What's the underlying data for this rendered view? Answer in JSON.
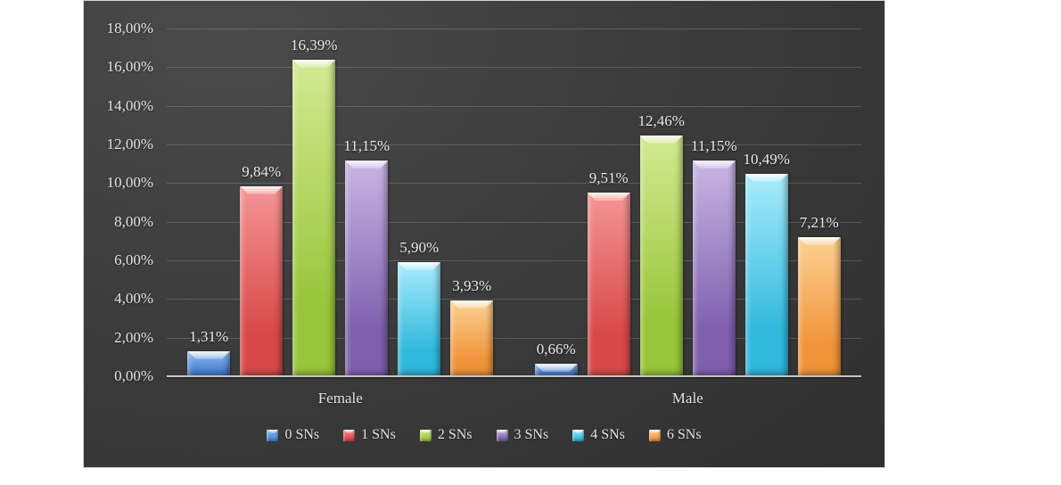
{
  "chart_data": {
    "type": "bar",
    "title": "",
    "xlabel": "",
    "ylabel": "",
    "categories": [
      "Female",
      "Male"
    ],
    "series": [
      {
        "name": "0 SNs",
        "values": [
          1.31,
          0.66
        ],
        "labels": [
          "1,31%",
          "0,66%"
        ],
        "color": {
          "top": "#8fbaee",
          "base": "#4b84d4"
        }
      },
      {
        "name": "1 SNs",
        "values": [
          9.84,
          9.51
        ],
        "labels": [
          "9,84%",
          "9,51%"
        ],
        "color": {
          "top": "#f59595",
          "base": "#d84848"
        }
      },
      {
        "name": "2 SNs",
        "values": [
          16.39,
          12.46
        ],
        "labels": [
          "16,39%",
          "12,46%"
        ],
        "color": {
          "top": "#d3ea92",
          "base": "#98c53a"
        }
      },
      {
        "name": "3 SNs",
        "values": [
          11.15,
          11.15
        ],
        "labels": [
          "11,15%",
          "11,15%"
        ],
        "color": {
          "top": "#c8b6e4",
          "base": "#7f60ae"
        }
      },
      {
        "name": "4 SNs",
        "values": [
          5.9,
          10.49
        ],
        "labels": [
          "5,90%",
          "10,49%"
        ],
        "color": {
          "top": "#a9ecfc",
          "base": "#30b8dd"
        }
      },
      {
        "name": "6 SNs",
        "values": [
          3.93,
          7.21
        ],
        "labels": [
          "3,93%",
          "7,21%"
        ],
        "color": {
          "top": "#fdd193",
          "base": "#f0943a"
        }
      }
    ],
    "ylim": [
      0,
      18
    ],
    "ytick_step": 2,
    "ytick_labels": [
      "0,00%",
      "2,00%",
      "4,00%",
      "6,00%",
      "8,00%",
      "10,00%",
      "12,00%",
      "14,00%",
      "16,00%",
      "18,00%"
    ],
    "grid": true,
    "legend_position": "bottom",
    "theme": {
      "background_dark": "#3c3c3c",
      "text": "#e4e4e4",
      "axis": "#c6c6c6"
    }
  }
}
